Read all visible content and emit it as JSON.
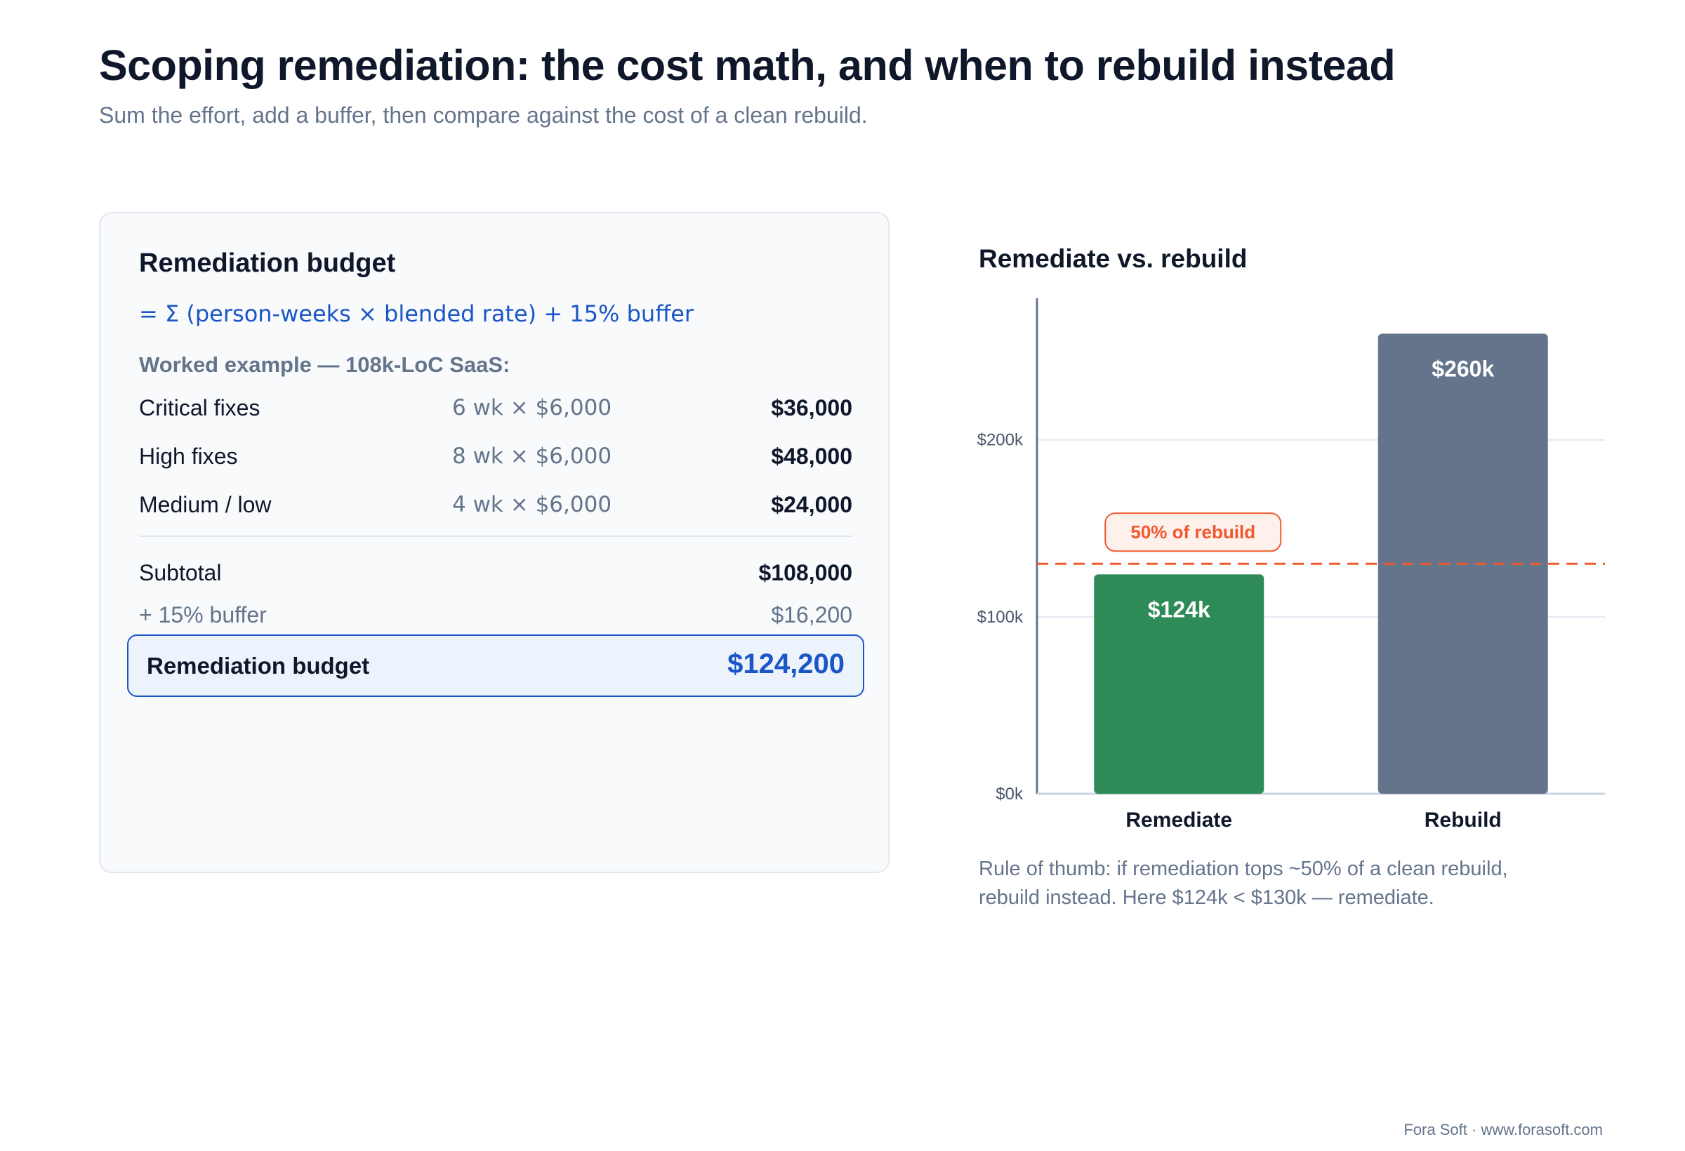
{
  "page": {
    "title": "Scoping remediation: the cost math, and when to rebuild instead",
    "subtitle": "Sum the effort, add a buffer, then compare against the cost of a clean rebuild."
  },
  "budget": {
    "title": "Remediation budget",
    "formula": "= Σ (person-weeks × blended rate) + 15% buffer",
    "example_label": "Worked example — 108k-LoC SaaS:",
    "lines": [
      {
        "label": "Critical fixes",
        "calc": "6 wk × $6,000",
        "amount": "$36,000"
      },
      {
        "label": "High fixes",
        "calc": "8 wk × $6,000",
        "amount": "$48,000"
      },
      {
        "label": "Medium / low",
        "calc": "4 wk × $6,000",
        "amount": "$24,000"
      }
    ],
    "subtotal": {
      "label": "Subtotal",
      "amount": "$108,000"
    },
    "buffer": {
      "label": "+ 15% buffer",
      "amount": "$16,200"
    },
    "total": {
      "label": "Remediation budget",
      "amount": "$124,200"
    }
  },
  "chart_data": {
    "type": "bar",
    "title": "Remediate vs. rebuild",
    "categories": [
      "Remediate",
      "Rebuild"
    ],
    "values": [
      124,
      260
    ],
    "value_labels": [
      "$124k",
      "$260k"
    ],
    "bar_colors": [
      "#2e8b57",
      "#64748b"
    ],
    "y_ticks": [
      0,
      100,
      200
    ],
    "y_tick_labels": [
      "$0k",
      "$100k",
      "$200k"
    ],
    "ylim": [
      0,
      280
    ],
    "grid": true,
    "threshold": {
      "value": 130,
      "label": "50% of rebuild",
      "color": "#f0592d"
    },
    "xlabel": "",
    "ylabel": ""
  },
  "chart_note": "Rule of thumb: if remediation tops ~50% of a clean rebuild, rebuild instead. Here $124k < $130k — remediate.",
  "footer": "Fora Soft · www.forasoft.com"
}
